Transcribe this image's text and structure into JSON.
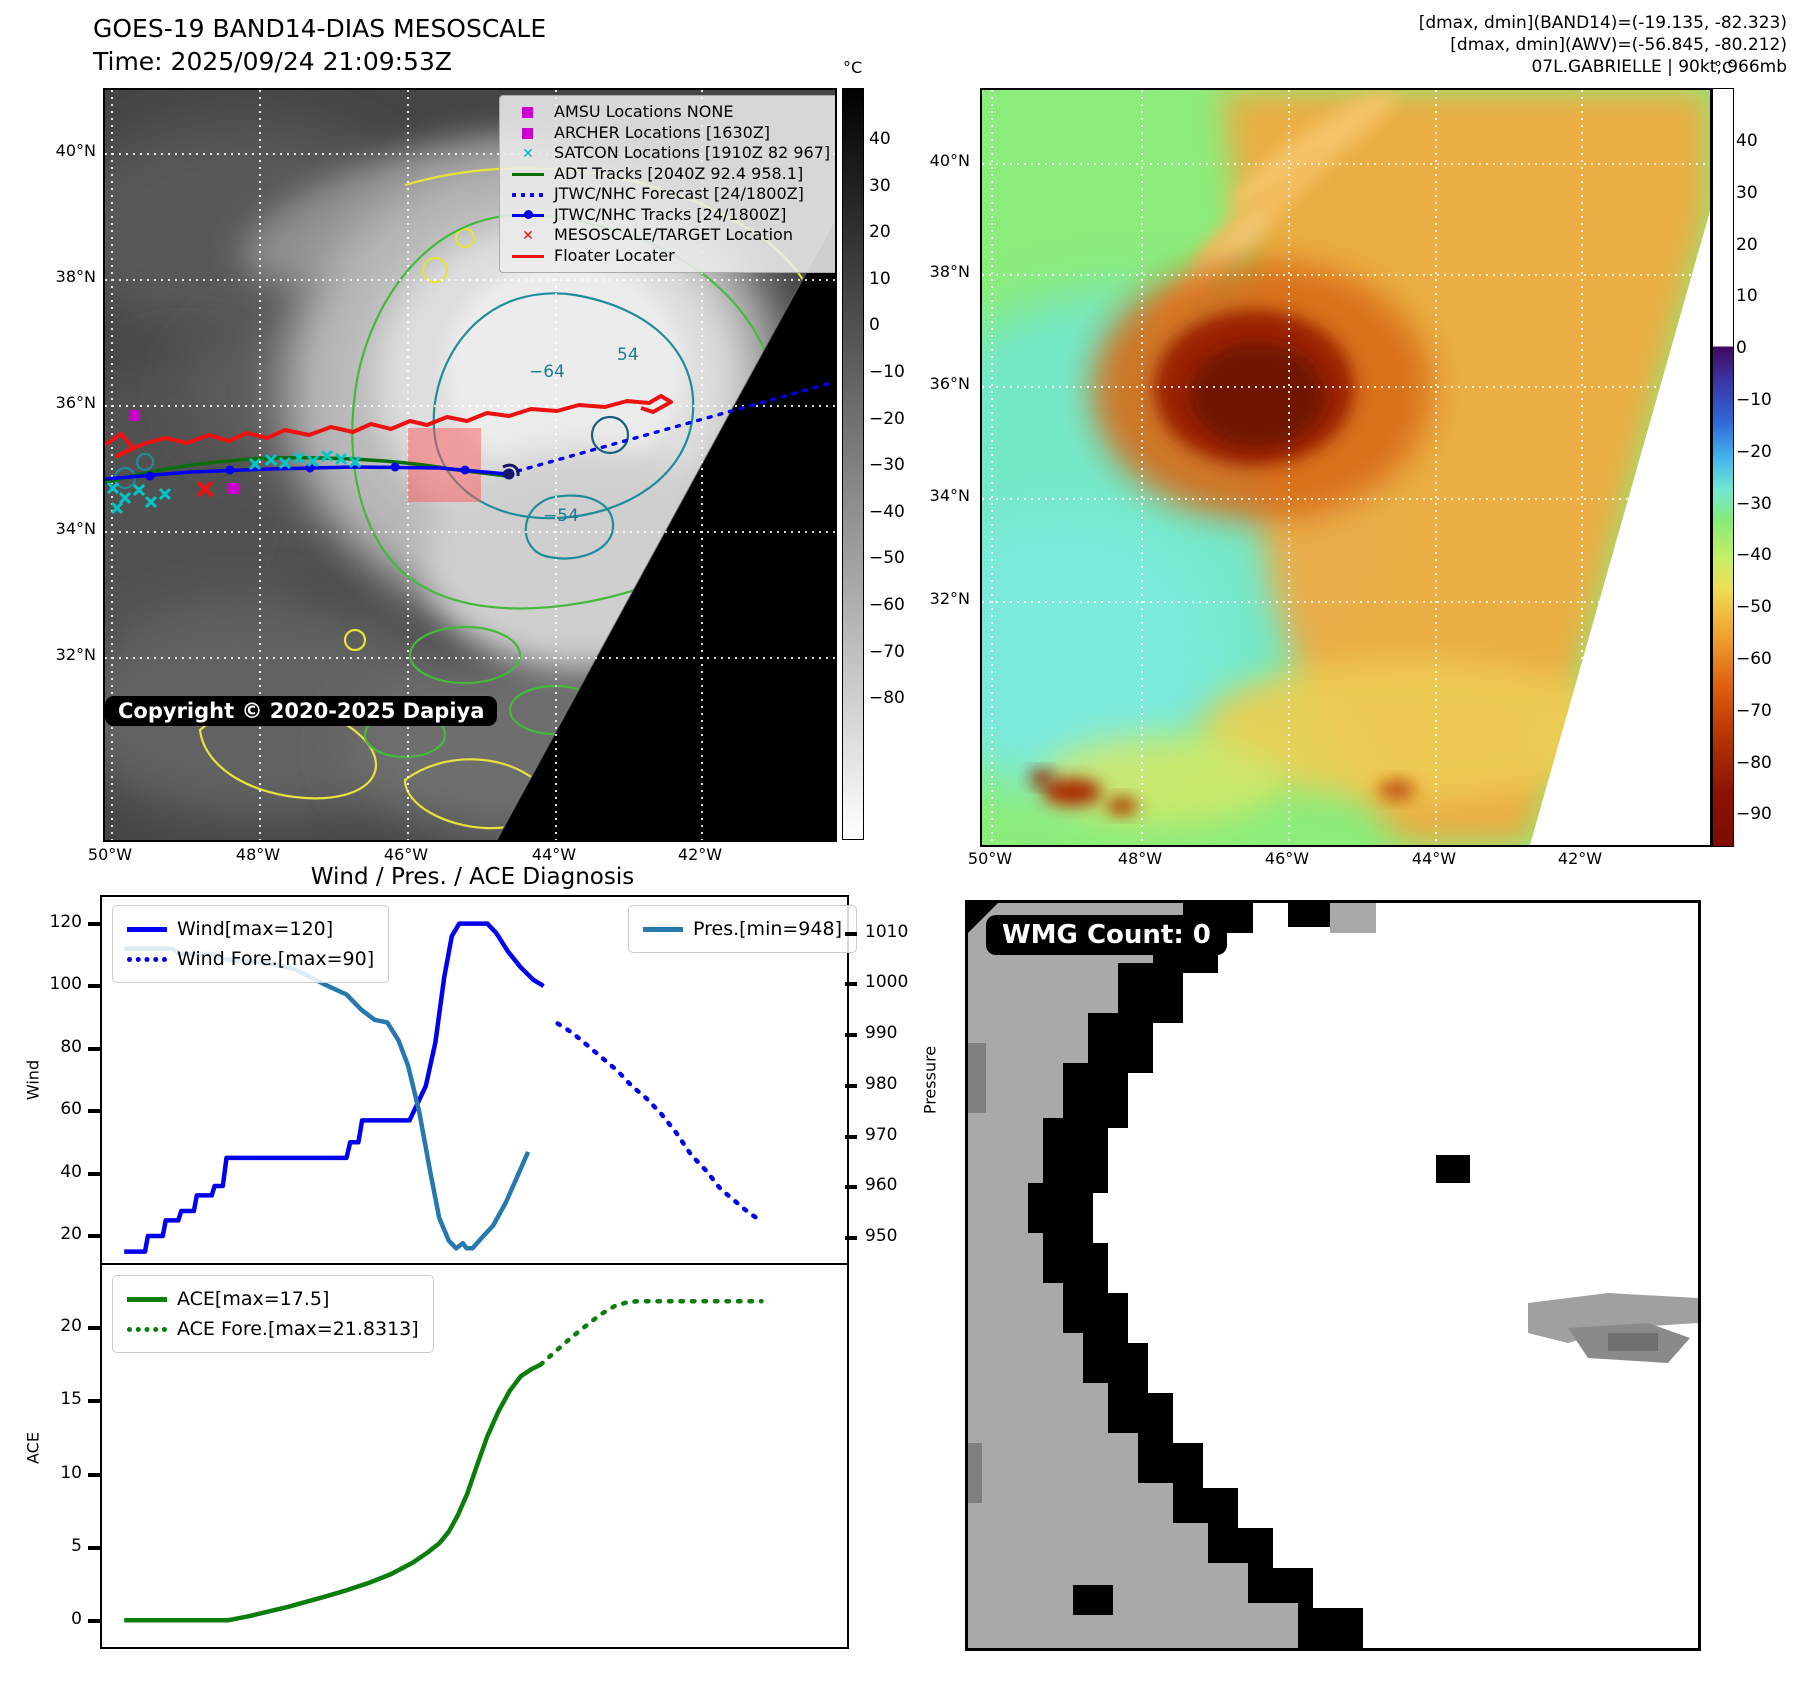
{
  "header": {
    "title_line1": "GOES-19 BAND14-DIAS MESOSCALE",
    "title_line2": "Time: 2025/09/24 21:09:53Z",
    "info_line1": "[dmax, dmin](BAND14)=(-19.135, -82.323)",
    "info_line2": "[dmax, dmin](AWV)=(-56.845, -80.212)",
    "info_line3": "07L.GABRIELLE | 90kt, 966mb"
  },
  "band14_panel": {
    "legend": [
      {
        "label": "AMSU Locations NONE",
        "swatch": "square",
        "color": "#cc00cc"
      },
      {
        "label": "ARCHER Locations [1630Z]",
        "swatch": "square",
        "color": "#cc00cc"
      },
      {
        "label": "SATCON Locations [1910Z 82 967]",
        "swatch": "x",
        "color": "#00b8b8"
      },
      {
        "label": "ADT Tracks [2040Z 92.4 958.1]",
        "swatch": "line",
        "color": "#0b6e0b"
      },
      {
        "label": "JTWC/NHC Forecast [24/1800Z]",
        "swatch": "dotted",
        "color": "#0000ee"
      },
      {
        "label": "JTWC/NHC Tracks [24/1800Z]",
        "swatch": "line-dot",
        "color": "#0000ee"
      },
      {
        "label": "MESOSCALE/TARGET Location",
        "swatch": "x",
        "color": "#ee1111"
      },
      {
        "label": "Floater Locater",
        "swatch": "line",
        "color": "#ee1111"
      }
    ],
    "colorbar": {
      "unit": "°C",
      "ticks": [
        "40",
        "30",
        "20",
        "10",
        "0",
        "−10",
        "−20",
        "−30",
        "−40",
        "−50",
        "−60",
        "−70",
        "−80"
      ]
    },
    "lat_labels": [
      "40°N",
      "38°N",
      "36°N",
      "34°N",
      "32°N"
    ],
    "lon_labels": [
      "50°W",
      "48°W",
      "46°W",
      "44°W",
      "42°W"
    ],
    "contour_labels": {
      "c1": "−64",
      "c2": "54",
      "c3": "−54"
    },
    "copyright": "Copyright © 2020-2025 Dapiya"
  },
  "awv_panel": {
    "colorbar": {
      "unit": "°C",
      "ticks": [
        "40",
        "30",
        "20",
        "10",
        "0",
        "−10",
        "−20",
        "−30",
        "−40",
        "−50",
        "−60",
        "−70",
        "−80",
        "−90"
      ]
    },
    "lat_labels": [
      "40°N",
      "38°N",
      "36°N",
      "34°N",
      "32°N"
    ],
    "lon_labels": [
      "50°W",
      "48°W",
      "46°W",
      "44°W",
      "42°W"
    ]
  },
  "wmg_panel": {
    "label": "WMG Count: 0"
  },
  "chart_data": [
    {
      "type": "line",
      "title": "Wind / Pres. / ACE Diagnosis",
      "ylabel_left": "Wind",
      "ylabel_right": "Pressure",
      "yticks_left": [
        120,
        100,
        80,
        60,
        40,
        20
      ],
      "yticks_right": [
        1010,
        1000,
        990,
        980,
        970,
        960,
        950
      ],
      "ylim_left": [
        12,
        128.5
      ],
      "ylim_right": [
        945.5,
        1017.2
      ],
      "x_axis": "normalized 0-1, no tick labels shown",
      "series": [
        {
          "name": "Wind[max=120]",
          "axis": "left",
          "color": "#0000ee",
          "style": "solid",
          "points": [
            [
              0.03,
              15
            ],
            [
              0.058,
              15
            ],
            [
              0.062,
              20
            ],
            [
              0.082,
              20
            ],
            [
              0.086,
              25
            ],
            [
              0.103,
              25
            ],
            [
              0.107,
              28
            ],
            [
              0.124,
              28
            ],
            [
              0.128,
              33
            ],
            [
              0.148,
              33
            ],
            [
              0.152,
              36
            ],
            [
              0.163,
              36
            ],
            [
              0.168,
              45
            ],
            [
              0.33,
              45
            ],
            [
              0.335,
              50
            ],
            [
              0.346,
              50
            ],
            [
              0.351,
              57
            ],
            [
              0.415,
              57
            ],
            [
              0.425,
              62
            ],
            [
              0.437,
              68
            ],
            [
              0.45,
              82
            ],
            [
              0.462,
              103
            ],
            [
              0.472,
              116
            ],
            [
              0.482,
              120
            ],
            [
              0.52,
              120
            ],
            [
              0.532,
              117
            ],
            [
              0.548,
              111
            ],
            [
              0.565,
              106
            ],
            [
              0.582,
              102
            ],
            [
              0.596,
              100
            ]
          ]
        },
        {
          "name": "Wind Fore.[max=90]",
          "axis": "left",
          "color": "#0000ee",
          "style": "dotted",
          "points": [
            [
              0.615,
              88
            ],
            [
              0.635,
              85
            ],
            [
              0.655,
              81
            ],
            [
              0.675,
              77
            ],
            [
              0.695,
              73
            ],
            [
              0.715,
              68
            ],
            [
              0.735,
              64
            ],
            [
              0.755,
              59
            ],
            [
              0.775,
              53
            ],
            [
              0.795,
              46
            ],
            [
              0.815,
              41
            ],
            [
              0.835,
              35
            ],
            [
              0.855,
              31
            ],
            [
              0.87,
              28
            ],
            [
              0.882,
              26
            ],
            [
              0.89,
              25
            ]
          ]
        },
        {
          "name": "Pres.[min=948]",
          "axis": "right",
          "color": "#2878b0",
          "style": "solid",
          "points": [
            [
              0.03,
              1007
            ],
            [
              0.095,
              1007
            ],
            [
              0.105,
              1006
            ],
            [
              0.15,
              1006
            ],
            [
              0.16,
              1005
            ],
            [
              0.2,
              1004.5
            ],
            [
              0.23,
              1004
            ],
            [
              0.26,
              1003
            ],
            [
              0.28,
              1001.5
            ],
            [
              0.3,
              1000
            ],
            [
              0.33,
              998
            ],
            [
              0.35,
              995
            ],
            [
              0.368,
              993
            ],
            [
              0.385,
              992.5
            ],
            [
              0.4,
              989
            ],
            [
              0.413,
              984
            ],
            [
              0.428,
              975
            ],
            [
              0.443,
              963
            ],
            [
              0.455,
              954
            ],
            [
              0.468,
              949.5
            ],
            [
              0.478,
              948
            ],
            [
              0.487,
              949
            ],
            [
              0.492,
              948
            ],
            [
              0.5,
              948
            ],
            [
              0.512,
              950
            ],
            [
              0.528,
              952.5
            ],
            [
              0.545,
              957
            ],
            [
              0.56,
              962
            ],
            [
              0.575,
              967
            ]
          ]
        }
      ]
    },
    {
      "type": "line",
      "ylabel_left": "ACE",
      "yticks_left": [
        20,
        15,
        10,
        5,
        0
      ],
      "ylim_left": [
        -1.5,
        24.3
      ],
      "series": [
        {
          "name": "ACE[max=17.5]",
          "axis": "left",
          "color": "#0b7d0b",
          "style": "solid",
          "points": [
            [
              0.03,
              0.05
            ],
            [
              0.17,
              0.05
            ],
            [
              0.2,
              0.35
            ],
            [
              0.25,
              0.95
            ],
            [
              0.3,
              1.65
            ],
            [
              0.33,
              2.1
            ],
            [
              0.36,
              2.6
            ],
            [
              0.39,
              3.2
            ],
            [
              0.42,
              4.0
            ],
            [
              0.44,
              4.7
            ],
            [
              0.455,
              5.3
            ],
            [
              0.468,
              6.1
            ],
            [
              0.48,
              7.2
            ],
            [
              0.493,
              8.7
            ],
            [
              0.506,
              10.6
            ],
            [
              0.52,
              12.6
            ],
            [
              0.535,
              14.3
            ],
            [
              0.55,
              15.7
            ],
            [
              0.565,
              16.7
            ],
            [
              0.58,
              17.2
            ],
            [
              0.592,
              17.5
            ]
          ]
        },
        {
          "name": "ACE Fore.[max=21.8313]",
          "axis": "left",
          "color": "#0b7d0b",
          "style": "dotted",
          "points": [
            [
              0.592,
              17.5
            ],
            [
              0.612,
              18.4
            ],
            [
              0.632,
              19.3
            ],
            [
              0.652,
              20.1
            ],
            [
              0.672,
              20.9
            ],
            [
              0.692,
              21.5
            ],
            [
              0.712,
              21.8
            ],
            [
              0.73,
              21.83
            ],
            [
              0.78,
              21.83
            ],
            [
              0.83,
              21.83
            ],
            [
              0.88,
              21.83
            ],
            [
              0.89,
              21.83
            ]
          ]
        }
      ]
    }
  ]
}
